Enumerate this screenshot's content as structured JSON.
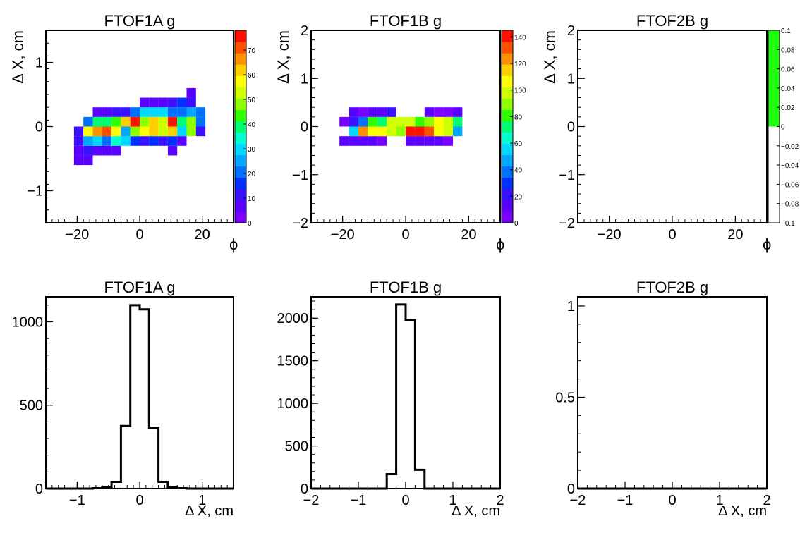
{
  "chart_data": [
    {
      "type": "heatmap",
      "title": "FTOF1A g",
      "xlabel": "ϕ",
      "ylabel": "Δ X, cm",
      "xlim": [
        -30,
        30
      ],
      "ylim": [
        -1.5,
        1.5
      ],
      "x_ticks": [
        "−20",
        "0",
        "20"
      ],
      "y_ticks": [
        "−1",
        "0",
        "1"
      ],
      "bin_width": [
        3,
        0.15
      ],
      "cells": [
        [
          -19.5,
          -0.525,
          8
        ],
        [
          -16.5,
          -0.525,
          8
        ],
        [
          -19.5,
          -0.375,
          5
        ],
        [
          -16.5,
          -0.375,
          10
        ],
        [
          -13.5,
          -0.375,
          8
        ],
        [
          -10.5,
          -0.375,
          8
        ],
        [
          -7.5,
          -0.375,
          8
        ],
        [
          10.5,
          -0.375,
          8
        ],
        [
          -19.5,
          -0.225,
          12
        ],
        [
          -16.5,
          -0.225,
          25
        ],
        [
          -13.5,
          -0.225,
          30
        ],
        [
          -10.5,
          -0.225,
          22
        ],
        [
          -7.5,
          -0.225,
          35
        ],
        [
          -4.5,
          -0.225,
          30
        ],
        [
          -1.5,
          -0.225,
          15
        ],
        [
          1.5,
          -0.225,
          12
        ],
        [
          4.5,
          -0.225,
          18
        ],
        [
          7.5,
          -0.225,
          12
        ],
        [
          10.5,
          -0.225,
          14
        ],
        [
          13.5,
          -0.225,
          8
        ],
        [
          -19.5,
          -0.075,
          12
        ],
        [
          -16.5,
          -0.075,
          58
        ],
        [
          -13.5,
          -0.075,
          65
        ],
        [
          -10.5,
          -0.075,
          72
        ],
        [
          -7.5,
          -0.075,
          58
        ],
        [
          -4.5,
          -0.075,
          25
        ],
        [
          -1.5,
          -0.075,
          50
        ],
        [
          1.5,
          -0.075,
          58
        ],
        [
          4.5,
          -0.075,
          62
        ],
        [
          7.5,
          -0.075,
          55
        ],
        [
          10.5,
          -0.075,
          62
        ],
        [
          13.5,
          -0.075,
          28
        ],
        [
          16.5,
          -0.075,
          48
        ],
        [
          19.5,
          -0.075,
          10
        ],
        [
          -16.5,
          0.075,
          22
        ],
        [
          -13.5,
          0.075,
          40
        ],
        [
          -10.5,
          0.075,
          40
        ],
        [
          -7.5,
          0.075,
          45
        ],
        [
          -4.5,
          0.075,
          60
        ],
        [
          -1.5,
          0.075,
          78
        ],
        [
          1.5,
          0.075,
          48
        ],
        [
          4.5,
          0.075,
          62
        ],
        [
          7.5,
          0.075,
          55
        ],
        [
          10.5,
          0.075,
          75
        ],
        [
          13.5,
          0.075,
          40
        ],
        [
          16.5,
          0.075,
          48
        ],
        [
          19.5,
          0.075,
          22
        ],
        [
          -13.5,
          0.225,
          8
        ],
        [
          -10.5,
          0.225,
          8
        ],
        [
          -7.5,
          0.225,
          10
        ],
        [
          -4.5,
          0.225,
          12
        ],
        [
          -1.5,
          0.225,
          22
        ],
        [
          1.5,
          0.225,
          32
        ],
        [
          4.5,
          0.225,
          28
        ],
        [
          7.5,
          0.225,
          30
        ],
        [
          10.5,
          0.225,
          22
        ],
        [
          13.5,
          0.225,
          20
        ],
        [
          16.5,
          0.225,
          25
        ],
        [
          19.5,
          0.225,
          22
        ],
        [
          1.5,
          0.375,
          8
        ],
        [
          4.5,
          0.375,
          8
        ],
        [
          7.5,
          0.375,
          8
        ],
        [
          10.5,
          0.375,
          12
        ],
        [
          13.5,
          0.375,
          15
        ],
        [
          16.5,
          0.375,
          12
        ],
        [
          16.5,
          0.525,
          8
        ]
      ],
      "zlim": [
        0,
        78
      ],
      "colorbar_ticks": [
        "0",
        "10",
        "20",
        "30",
        "40",
        "50",
        "60",
        "70"
      ]
    },
    {
      "type": "heatmap",
      "title": "FTOF1B g",
      "xlabel": "ϕ",
      "ylabel": "Δ X, cm",
      "xlim": [
        -30,
        30
      ],
      "ylim": [
        -2,
        2
      ],
      "x_ticks": [
        "−20",
        "0",
        "20"
      ],
      "y_ticks": [
        "−2",
        "−1",
        "0",
        "1",
        "2"
      ],
      "bin_width": [
        3,
        0.2
      ],
      "cells": [
        [
          -19.5,
          -0.3,
          15
        ],
        [
          -16.5,
          -0.3,
          10
        ],
        [
          -13.5,
          -0.3,
          12
        ],
        [
          -10.5,
          -0.3,
          10
        ],
        [
          -7.5,
          -0.3,
          8
        ],
        [
          1.5,
          -0.3,
          12
        ],
        [
          4.5,
          -0.3,
          15
        ],
        [
          7.5,
          -0.3,
          12
        ],
        [
          10.5,
          -0.3,
          10
        ],
        [
          13.5,
          -0.3,
          8
        ],
        [
          -16.5,
          -0.1,
          55
        ],
        [
          -13.5,
          -0.1,
          125
        ],
        [
          -10.5,
          -0.1,
          110
        ],
        [
          -7.5,
          -0.1,
          105
        ],
        [
          -4.5,
          -0.1,
          100
        ],
        [
          -1.5,
          -0.1,
          90
        ],
        [
          1.5,
          -0.1,
          145
        ],
        [
          4.5,
          -0.1,
          145
        ],
        [
          7.5,
          -0.1,
          135
        ],
        [
          10.5,
          -0.1,
          110
        ],
        [
          13.5,
          -0.1,
          95
        ],
        [
          16.5,
          -0.1,
          50
        ],
        [
          -19.5,
          0.1,
          8
        ],
        [
          -16.5,
          0.1,
          25
        ],
        [
          -13.5,
          0.1,
          35
        ],
        [
          -10.5,
          0.1,
          85
        ],
        [
          -7.5,
          0.1,
          75
        ],
        [
          -4.5,
          0.1,
          95
        ],
        [
          -1.5,
          0.1,
          100
        ],
        [
          1.5,
          0.1,
          95
        ],
        [
          4.5,
          0.1,
          85
        ],
        [
          7.5,
          0.1,
          90
        ],
        [
          10.5,
          0.1,
          105
        ],
        [
          13.5,
          0.1,
          100
        ],
        [
          16.5,
          0.1,
          75
        ],
        [
          -16.5,
          0.3,
          10
        ],
        [
          -13.5,
          0.3,
          8
        ],
        [
          -10.5,
          0.3,
          12
        ],
        [
          -7.5,
          0.3,
          15
        ],
        [
          -4.5,
          0.3,
          18
        ],
        [
          7.5,
          0.3,
          10
        ],
        [
          10.5,
          0.3,
          8
        ],
        [
          13.5,
          0.3,
          8
        ],
        [
          16.5,
          0.3,
          15
        ]
      ],
      "zlim": [
        0,
        145
      ],
      "colorbar_ticks": [
        "0",
        "20",
        "40",
        "60",
        "80",
        "100",
        "120",
        "140"
      ]
    },
    {
      "type": "heatmap",
      "title": "FTOF2B g",
      "xlabel": "ϕ",
      "ylabel": "Δ X, cm",
      "xlim": [
        -30,
        30
      ],
      "ylim": [
        -2,
        2
      ],
      "x_ticks": [
        "−20",
        "0",
        "20"
      ],
      "y_ticks": [
        "−2",
        "−1",
        "0",
        "1",
        "2"
      ],
      "cells": [],
      "colorbar_ticks": [
        "−0.1",
        "−0.08",
        "−0.06",
        "−0.04",
        "−0.02",
        "0",
        "0.02",
        "0.04",
        "0.06",
        "0.08",
        "0.1"
      ]
    },
    {
      "type": "histogram",
      "title": "FTOF1A g",
      "xlabel": "Δ X, cm",
      "xlim": [
        -1.5,
        1.5
      ],
      "ylim": [
        0,
        1150
      ],
      "x_ticks": [
        "−1",
        "0",
        "1"
      ],
      "y_ticks": [
        "0",
        "500",
        "1000"
      ],
      "bin_edges": [
        -1.5,
        -1.35,
        -1.2,
        -1.05,
        -0.9,
        -0.75,
        -0.6,
        -0.45,
        -0.3,
        -0.15,
        0,
        0.15,
        0.3,
        0.45,
        0.6,
        0.75,
        0.9,
        1.05,
        1.2,
        1.35,
        1.5
      ],
      "values": [
        0,
        0,
        0,
        0,
        0,
        2,
        10,
        40,
        375,
        1100,
        1075,
        365,
        40,
        8,
        2,
        0,
        0,
        0,
        0,
        0
      ]
    },
    {
      "type": "histogram",
      "title": "FTOF1B g",
      "xlabel": "Δ X, cm",
      "xlim": [
        -2,
        2
      ],
      "ylim": [
        0,
        2250
      ],
      "x_ticks": [
        "−2",
        "−1",
        "0",
        "1",
        "2"
      ],
      "y_ticks": [
        "0",
        "500",
        "1000",
        "1500",
        "2000"
      ],
      "bin_edges": [
        -2,
        -1.8,
        -1.6,
        -1.4,
        -1.2,
        -1,
        -0.8,
        -0.6,
        -0.4,
        -0.2,
        0,
        0.2,
        0.4,
        0.6,
        0.8,
        1,
        1.2,
        1.4,
        1.6,
        1.8,
        2
      ],
      "values": [
        0,
        0,
        0,
        0,
        0,
        0,
        0,
        0,
        170,
        2160,
        1980,
        220,
        0,
        0,
        0,
        0,
        0,
        0,
        0,
        0
      ]
    },
    {
      "type": "histogram",
      "title": "FTOF2B g",
      "xlabel": "Δ X, cm",
      "xlim": [
        -2,
        2
      ],
      "ylim": [
        0,
        1.05
      ],
      "x_ticks": [
        "−2",
        "−1",
        "0",
        "1",
        "2"
      ],
      "y_ticks": [
        "0",
        "0.5",
        "1"
      ],
      "bin_edges": [
        -2,
        -1.8,
        -1.6,
        -1.4,
        -1.2,
        -1,
        -0.8,
        -0.6,
        -0.4,
        -0.2,
        0,
        0.2,
        0.4,
        0.6,
        0.8,
        1,
        1.2,
        1.4,
        1.6,
        1.8,
        2
      ],
      "values": [
        0,
        0,
        0,
        0,
        0,
        0,
        0,
        0,
        0,
        0,
        0,
        0,
        0,
        0,
        0,
        0,
        0,
        0,
        0,
        0
      ]
    }
  ]
}
